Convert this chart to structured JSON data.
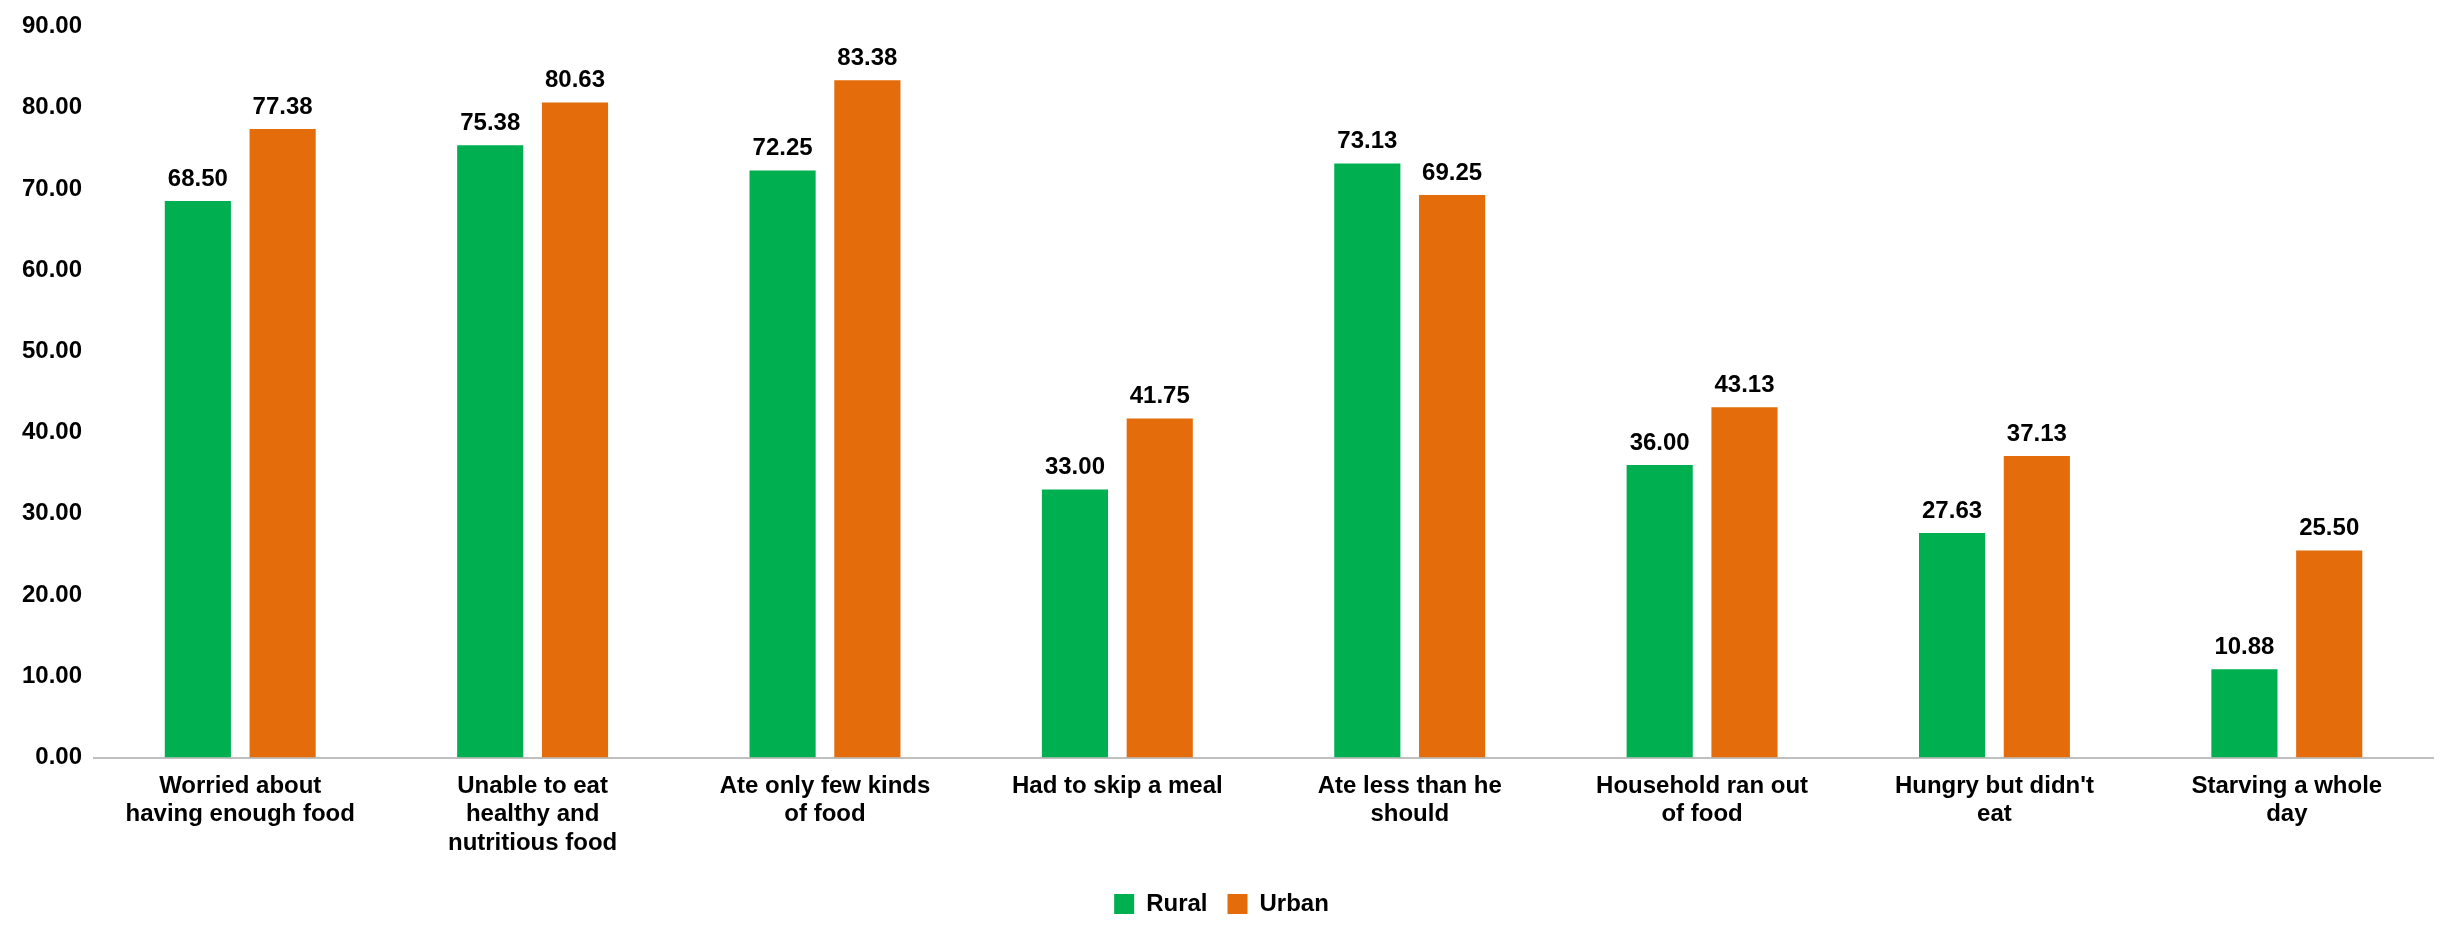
{
  "chart_data": {
    "type": "bar",
    "categories": [
      "Worried about having enough food",
      "Unable to eat healthy and nutritious food",
      "Ate only few kinds of food",
      "Had to skip a meal",
      "Ate less than he should",
      "Household ran out of food",
      "Hungry but didn't eat",
      "Starving a whole day"
    ],
    "series": [
      {
        "name": "Rural",
        "color": "#00b050",
        "values": [
          68.5,
          75.38,
          72.25,
          33.0,
          73.13,
          36.0,
          27.63,
          10.88
        ],
        "value_labels": [
          "68.50",
          "75.38",
          "72.25",
          "33.00",
          "73.13",
          "36.00",
          "27.63",
          "10.88"
        ]
      },
      {
        "name": "Urban",
        "color": "#e46c0a",
        "values": [
          77.38,
          80.63,
          83.38,
          41.75,
          69.25,
          43.13,
          37.13,
          25.5
        ],
        "value_labels": [
          "77.38",
          "80.63",
          "83.38",
          "41.75",
          "69.25",
          "43.13",
          "37.13",
          "25.50"
        ]
      }
    ],
    "ylim": [
      0,
      90
    ],
    "yticks": [
      {
        "value": 0,
        "label": "0.00"
      },
      {
        "value": 10,
        "label": "10.00"
      },
      {
        "value": 20,
        "label": "20.00"
      },
      {
        "value": 30,
        "label": "30.00"
      },
      {
        "value": 40,
        "label": "40.00"
      },
      {
        "value": 50,
        "label": "50.00"
      },
      {
        "value": 60,
        "label": "60.00"
      },
      {
        "value": 70,
        "label": "70.00"
      },
      {
        "value": 80,
        "label": "80.00"
      },
      {
        "value": 90,
        "label": "90.00"
      }
    ],
    "grid": false,
    "legend": "bottom"
  }
}
